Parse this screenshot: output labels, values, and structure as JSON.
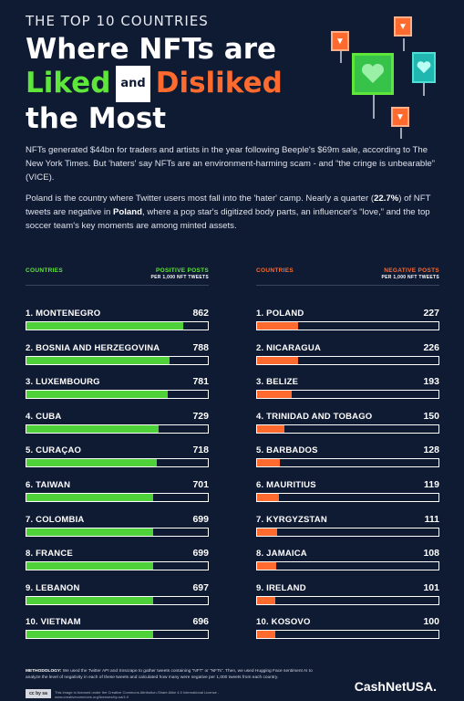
{
  "header": {
    "eyebrow": "THE TOP 10 COUNTRIES",
    "title_line1": "Where NFTs are",
    "liked": "Liked",
    "and": "and",
    "disliked": "Disliked",
    "title_line3": "the Most"
  },
  "intro": {
    "p1": "NFTs generated $44bn for traders and artists in the year following Beeple's $69m sale, according to The New York Times. But 'haters' say NFTs are an environment-harming scam - and “the cringe is unbearable” (VICE).",
    "p2_a": "Poland is the country where Twitter users most fall into the 'hater' camp. Nearly a quarter (",
    "p2_pct": "22.7%",
    "p2_b": ") of NFT tweets are negative in ",
    "p2_country": "Poland",
    "p2_c": ", where a pop star's digitized body parts, an influencer's “love,” and the top soccer team's key moments are among minted assets."
  },
  "positive": {
    "countries_header": "COUNTRIES",
    "metric_header": "POSITIVE POSTS",
    "metric_sub": "PER 1,000 NFT TWEETS",
    "max": 1000,
    "color": "#4fd13a",
    "rows": [
      {
        "label": "1. MONTENEGRO",
        "value": 862
      },
      {
        "label": "2. BOSNIA AND HERZEGOVINA",
        "value": 788
      },
      {
        "label": "3. LUXEMBOURG",
        "value": 781
      },
      {
        "label": "4. CUBA",
        "value": 729
      },
      {
        "label": "5. CURAÇAO",
        "value": 718
      },
      {
        "label": "6. TAIWAN",
        "value": 701
      },
      {
        "label": "7. COLOMBIA",
        "value": 699
      },
      {
        "label": "8. FRANCE",
        "value": 699
      },
      {
        "label": "9. LEBANON",
        "value": 697
      },
      {
        "label": "10. VIETNAM",
        "value": 696
      }
    ]
  },
  "negative": {
    "countries_header": "COUNTRIES",
    "metric_header": "NEGATIVE POSTS",
    "metric_sub": "PER 1,000 NFT TWEETS",
    "max": 1000,
    "color": "#ff6b2e",
    "rows": [
      {
        "label": "1. POLAND",
        "value": 227
      },
      {
        "label": "2. NICARAGUA",
        "value": 226
      },
      {
        "label": "3. BELIZE",
        "value": 193
      },
      {
        "label": "4. TRINIDAD AND TOBAGO",
        "value": 150
      },
      {
        "label": "5. BARBADOS",
        "value": 128
      },
      {
        "label": "6. MAURITIUS",
        "value": 119
      },
      {
        "label": "7. KYRGYZSTAN",
        "value": 111
      },
      {
        "label": "8. JAMAICA",
        "value": 108
      },
      {
        "label": "9. IRELAND",
        "value": 101
      },
      {
        "label": "10. KOSOVO",
        "value": 100
      }
    ]
  },
  "footer": {
    "method_label": "METHODOLOGY:",
    "method_text": " We used the Twitter API and Snscrape to gather tweets containing “NFT” or “NFTs”. Then, we used Hugging Face sentiment AI to analyze the level of negativity in each of these tweets and calculated how many were negative per 1,000 tweets from each country.",
    "cc_badge": "cc by sa",
    "license": "This image is licensed under the Creative Commons Attribution-Share Alike 4.0 International License - www.creativecommons.org/licenses/by-sa/4.0",
    "brand": "CashNetUSA."
  }
}
